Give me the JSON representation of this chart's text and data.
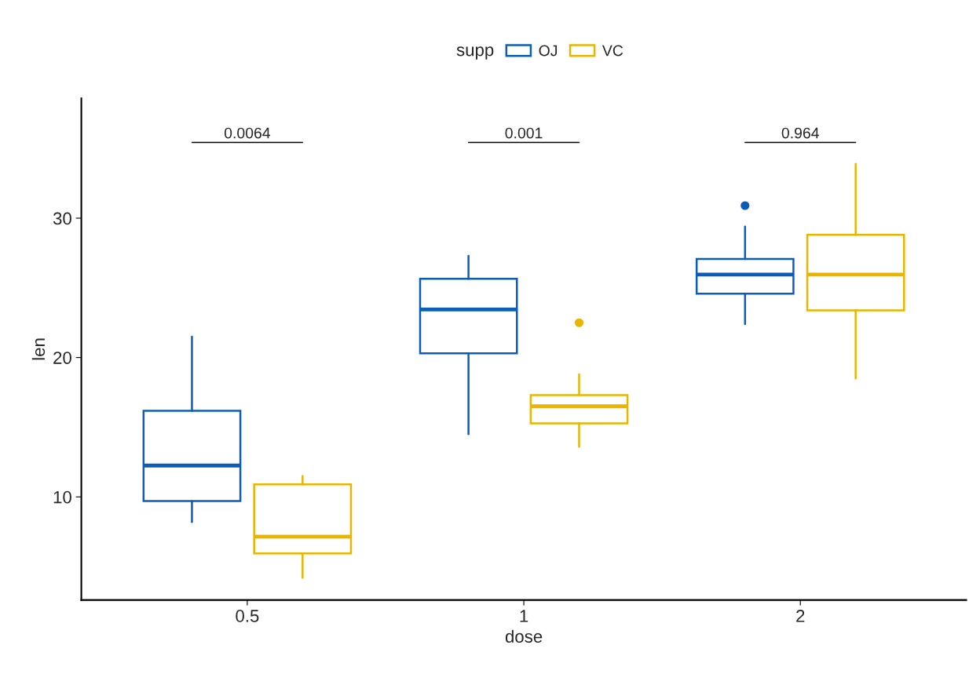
{
  "chart_data": {
    "type": "box",
    "xlabel": "dose",
    "ylabel": "len",
    "legend_title": "supp",
    "legend": "top",
    "grid": false,
    "categories": [
      "0.5",
      "1",
      "2"
    ],
    "ylim": [
      2.6,
      38.6
    ],
    "yticks": [
      10,
      20,
      30
    ],
    "series": [
      {
        "name": "OJ",
        "color": "#0c5db8",
        "boxes": [
          {
            "low": 8.2,
            "q1": 9.7,
            "median": 12.25,
            "q3": 16.18,
            "high": 21.5
          },
          {
            "low": 14.5,
            "q1": 20.3,
            "median": 23.45,
            "q3": 25.65,
            "high": 27.3
          },
          {
            "low": 22.4,
            "q1": 24.58,
            "median": 25.95,
            "q3": 27.08,
            "high": 29.4,
            "outliers": [
              30.9
            ]
          }
        ]
      },
      {
        "name": "VC",
        "color": "#e8b500",
        "boxes": [
          {
            "low": 4.2,
            "q1": 5.95,
            "median": 7.15,
            "q3": 10.9,
            "high": 11.5
          },
          {
            "low": 13.6,
            "q1": 15.27,
            "median": 16.5,
            "q3": 17.3,
            "high": 18.8,
            "outliers": [
              22.5
            ]
          },
          {
            "low": 18.5,
            "q1": 23.38,
            "median": 25.95,
            "q3": 28.8,
            "high": 33.9
          }
        ]
      }
    ],
    "annotations": [
      "0.0064",
      "0.001",
      "0.964"
    ]
  }
}
